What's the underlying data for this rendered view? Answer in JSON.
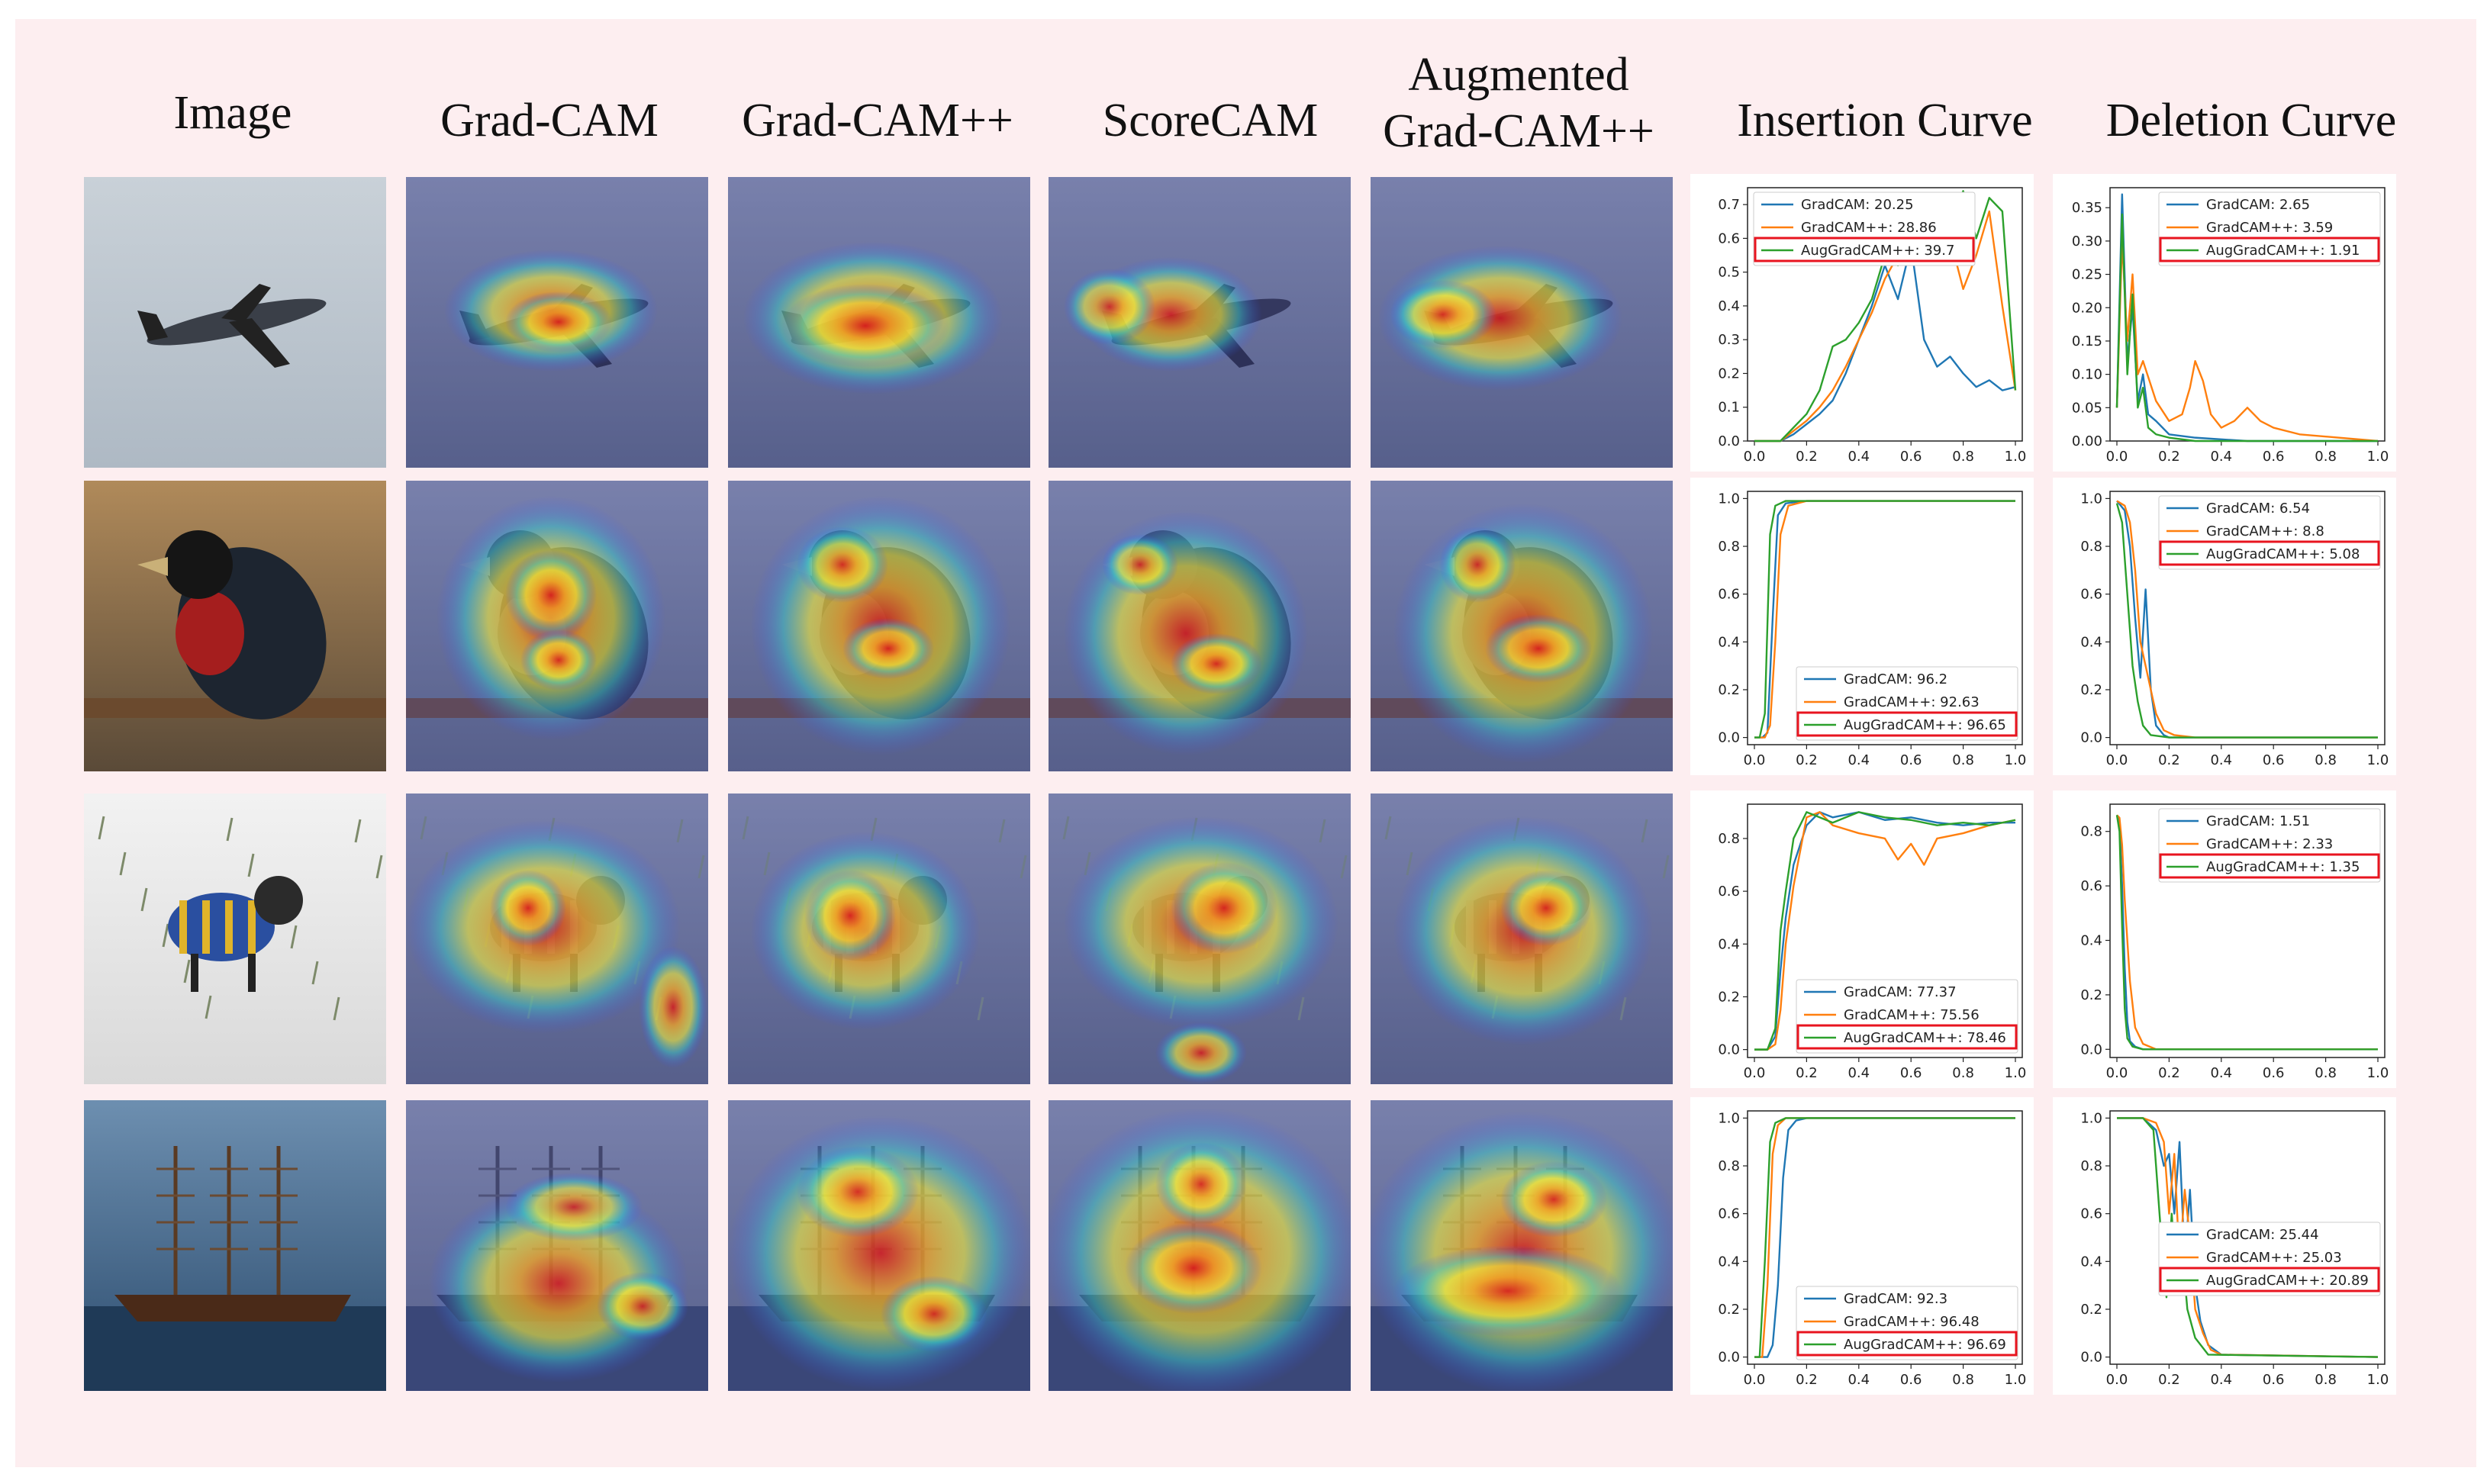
{
  "columns": [
    "Image",
    "Grad-CAM",
    "Grad-CAM++",
    "ScoreCAM",
    "Augmented Grad-CAM++",
    "Insertion Curve",
    "Deletion Curve"
  ],
  "header_aug_line1": "Augmented",
  "header_aug_line2": "Grad-CAM++",
  "rows": [
    {
      "subject": "airplane",
      "insertion": {
        "ylim": [
          0,
          0.75
        ],
        "yticks": [
          "0.0",
          "0.1",
          "0.2",
          "0.3",
          "0.4",
          "0.5",
          "0.6",
          "0.7"
        ],
        "legend_pos": "top-left",
        "labels": [
          "GradCAM: 20.25",
          "GradCAM++: 28.86",
          "AugGradCAM++: 39.7"
        ],
        "series": [
          {
            "name": "GradCAM",
            "x": [
              0,
              0.1,
              0.15,
              0.2,
              0.25,
              0.3,
              0.35,
              0.4,
              0.45,
              0.5,
              0.55,
              0.6,
              0.65,
              0.7,
              0.75,
              0.8,
              0.85,
              0.9,
              0.95,
              1.0
            ],
            "y": [
              0,
              0,
              0.02,
              0.05,
              0.08,
              0.12,
              0.2,
              0.3,
              0.4,
              0.52,
              0.42,
              0.58,
              0.3,
              0.22,
              0.25,
              0.2,
              0.16,
              0.18,
              0.15,
              0.16
            ]
          },
          {
            "name": "GradCAM++",
            "x": [
              0,
              0.1,
              0.15,
              0.2,
              0.25,
              0.3,
              0.35,
              0.4,
              0.45,
              0.5,
              0.55,
              0.6,
              0.65,
              0.7,
              0.75,
              0.8,
              0.85,
              0.9,
              0.95,
              1.0
            ],
            "y": [
              0,
              0,
              0.03,
              0.06,
              0.1,
              0.15,
              0.22,
              0.3,
              0.38,
              0.48,
              0.55,
              0.62,
              0.58,
              0.72,
              0.6,
              0.45,
              0.55,
              0.68,
              0.4,
              0.15
            ]
          },
          {
            "name": "AugGradCAM++",
            "x": [
              0,
              0.1,
              0.15,
              0.2,
              0.25,
              0.3,
              0.35,
              0.4,
              0.45,
              0.5,
              0.55,
              0.6,
              0.65,
              0.7,
              0.75,
              0.8,
              0.85,
              0.9,
              0.95,
              1.0
            ],
            "y": [
              0,
              0,
              0.04,
              0.08,
              0.15,
              0.28,
              0.3,
              0.35,
              0.42,
              0.55,
              0.52,
              0.68,
              0.62,
              0.7,
              0.66,
              0.74,
              0.6,
              0.72,
              0.68,
              0.15
            ]
          }
        ]
      },
      "deletion": {
        "ylim": [
          0,
          0.38
        ],
        "yticks": [
          "0.00",
          "0.05",
          "0.10",
          "0.15",
          "0.20",
          "0.25",
          "0.30",
          "0.35"
        ],
        "legend_pos": "top-right",
        "labels": [
          "GradCAM: 2.65",
          "GradCAM++: 3.59",
          "AugGradCAM++: 1.91"
        ],
        "series": [
          {
            "name": "GradCAM",
            "x": [
              0,
              0.02,
              0.04,
              0.06,
              0.08,
              0.1,
              0.12,
              0.15,
              0.2,
              0.3,
              0.5,
              1.0
            ],
            "y": [
              0.05,
              0.37,
              0.12,
              0.2,
              0.06,
              0.1,
              0.04,
              0.03,
              0.01,
              0.005,
              0,
              0
            ]
          },
          {
            "name": "GradCAM++",
            "x": [
              0,
              0.02,
              0.04,
              0.06,
              0.08,
              0.1,
              0.15,
              0.2,
              0.25,
              0.28,
              0.3,
              0.33,
              0.36,
              0.4,
              0.45,
              0.5,
              0.55,
              0.6,
              0.7,
              1.0
            ],
            "y": [
              0.05,
              0.3,
              0.15,
              0.25,
              0.1,
              0.12,
              0.06,
              0.03,
              0.04,
              0.08,
              0.12,
              0.09,
              0.04,
              0.02,
              0.03,
              0.05,
              0.03,
              0.02,
              0.01,
              0
            ]
          },
          {
            "name": "AugGradCAM++",
            "x": [
              0,
              0.02,
              0.04,
              0.06,
              0.08,
              0.1,
              0.12,
              0.15,
              0.2,
              0.3,
              1.0
            ],
            "y": [
              0.05,
              0.34,
              0.1,
              0.22,
              0.05,
              0.08,
              0.02,
              0.01,
              0.005,
              0,
              0
            ]
          }
        ]
      }
    },
    {
      "subject": "bird",
      "insertion": {
        "ylim": [
          -0.03,
          1.03
        ],
        "yticks": [
          "0.0",
          "0.2",
          "0.4",
          "0.6",
          "0.8",
          "1.0"
        ],
        "legend_pos": "bottom-right",
        "labels": [
          "GradCAM: 96.2",
          "GradCAM++: 92.63",
          "AugGradCAM++: 96.65"
        ],
        "series": [
          {
            "name": "GradCAM",
            "x": [
              0,
              0.03,
              0.05,
              0.07,
              0.09,
              0.12,
              0.2,
              0.4,
              0.6,
              1.0
            ],
            "y": [
              0,
              0,
              0.02,
              0.5,
              0.93,
              0.98,
              0.99,
              0.99,
              0.99,
              0.99
            ]
          },
          {
            "name": "GradCAM++",
            "x": [
              0,
              0.04,
              0.06,
              0.08,
              0.1,
              0.13,
              0.2,
              0.3,
              1.0
            ],
            "y": [
              0,
              0,
              0.05,
              0.4,
              0.85,
              0.97,
              0.99,
              0.99,
              0.99
            ]
          },
          {
            "name": "AugGradCAM++",
            "x": [
              0,
              0.02,
              0.04,
              0.06,
              0.08,
              0.12,
              0.3,
              1.0
            ],
            "y": [
              0,
              0,
              0.1,
              0.85,
              0.97,
              0.99,
              0.99,
              0.99
            ]
          }
        ]
      },
      "deletion": {
        "ylim": [
          -0.03,
          1.03
        ],
        "yticks": [
          "0.0",
          "0.2",
          "0.4",
          "0.6",
          "0.8",
          "1.0"
        ],
        "legend_pos": "top-right",
        "labels": [
          "GradCAM: 6.54",
          "GradCAM++: 8.8",
          "AugGradCAM++: 5.08"
        ],
        "series": [
          {
            "name": "GradCAM",
            "x": [
              0,
              0.03,
              0.05,
              0.07,
              0.09,
              0.11,
              0.13,
              0.15,
              0.18,
              0.2,
              0.3,
              1.0
            ],
            "y": [
              0.99,
              0.95,
              0.8,
              0.5,
              0.25,
              0.62,
              0.2,
              0.05,
              0.01,
              0,
              0,
              0
            ]
          },
          {
            "name": "GradCAM++",
            "x": [
              0,
              0.03,
              0.05,
              0.07,
              0.09,
              0.11,
              0.13,
              0.15,
              0.18,
              0.22,
              0.3,
              1.0
            ],
            "y": [
              0.99,
              0.97,
              0.9,
              0.7,
              0.4,
              0.3,
              0.2,
              0.1,
              0.03,
              0.01,
              0,
              0
            ]
          },
          {
            "name": "AugGradCAM++",
            "x": [
              0,
              0.02,
              0.04,
              0.06,
              0.08,
              0.1,
              0.13,
              0.2,
              1.0
            ],
            "y": [
              0.98,
              0.9,
              0.6,
              0.3,
              0.15,
              0.05,
              0.01,
              0,
              0
            ]
          }
        ]
      }
    },
    {
      "subject": "dog",
      "insertion": {
        "ylim": [
          -0.03,
          0.93
        ],
        "yticks": [
          "0.0",
          "0.2",
          "0.4",
          "0.6",
          "0.8"
        ],
        "legend_pos": "bottom-right",
        "labels": [
          "GradCAM: 77.37",
          "GradCAM++: 75.56",
          "AugGradCAM++: 78.46"
        ],
        "series": [
          {
            "name": "GradCAM",
            "x": [
              0,
              0.05,
              0.08,
              0.1,
              0.12,
              0.15,
              0.2,
              0.25,
              0.3,
              0.4,
              0.5,
              0.6,
              0.7,
              0.8,
              0.9,
              1.0
            ],
            "y": [
              0,
              0,
              0.05,
              0.3,
              0.5,
              0.7,
              0.85,
              0.9,
              0.88,
              0.9,
              0.87,
              0.88,
              0.86,
              0.85,
              0.86,
              0.86
            ]
          },
          {
            "name": "GradCAM++",
            "x": [
              0,
              0.05,
              0.08,
              0.1,
              0.12,
              0.15,
              0.2,
              0.25,
              0.3,
              0.4,
              0.5,
              0.55,
              0.6,
              0.65,
              0.7,
              0.8,
              0.9,
              1.0
            ],
            "y": [
              0,
              0,
              0.02,
              0.15,
              0.4,
              0.62,
              0.88,
              0.9,
              0.85,
              0.82,
              0.8,
              0.72,
              0.78,
              0.7,
              0.8,
              0.82,
              0.85,
              0.87
            ]
          },
          {
            "name": "AugGradCAM++",
            "x": [
              0,
              0.05,
              0.08,
              0.1,
              0.12,
              0.15,
              0.2,
              0.25,
              0.3,
              0.4,
              0.5,
              0.6,
              0.7,
              0.8,
              0.9,
              1.0
            ],
            "y": [
              0,
              0,
              0.08,
              0.45,
              0.6,
              0.8,
              0.9,
              0.88,
              0.86,
              0.9,
              0.88,
              0.87,
              0.85,
              0.86,
              0.85,
              0.87
            ]
          }
        ]
      },
      "deletion": {
        "ylim": [
          -0.03,
          0.9
        ],
        "yticks": [
          "0.0",
          "0.2",
          "0.4",
          "0.6",
          "0.8"
        ],
        "legend_pos": "top-right",
        "labels": [
          "GradCAM: 1.51",
          "GradCAM++: 2.33",
          "AugGradCAM++: 1.35"
        ],
        "series": [
          {
            "name": "GradCAM",
            "x": [
              0,
              0.01,
              0.02,
              0.03,
              0.04,
              0.05,
              0.07,
              0.1,
              1.0
            ],
            "y": [
              0.86,
              0.84,
              0.6,
              0.3,
              0.1,
              0.03,
              0.01,
              0,
              0
            ]
          },
          {
            "name": "GradCAM++",
            "x": [
              0,
              0.01,
              0.02,
              0.03,
              0.05,
              0.07,
              0.1,
              0.15,
              1.0
            ],
            "y": [
              0.86,
              0.85,
              0.75,
              0.55,
              0.25,
              0.08,
              0.02,
              0,
              0
            ]
          },
          {
            "name": "AugGradCAM++",
            "x": [
              0,
              0.01,
              0.02,
              0.03,
              0.04,
              0.06,
              0.1,
              1.0
            ],
            "y": [
              0.86,
              0.8,
              0.45,
              0.15,
              0.04,
              0.01,
              0,
              0
            ]
          }
        ]
      }
    },
    {
      "subject": "ship",
      "insertion": {
        "ylim": [
          -0.03,
          1.03
        ],
        "yticks": [
          "0.0",
          "0.2",
          "0.4",
          "0.6",
          "0.8",
          "1.0"
        ],
        "legend_pos": "bottom-right",
        "labels": [
          "GradCAM: 92.3",
          "GradCAM++: 96.48",
          "AugGradCAM++: 96.69"
        ],
        "series": [
          {
            "name": "GradCAM",
            "x": [
              0,
              0.05,
              0.07,
              0.09,
              0.11,
              0.13,
              0.16,
              0.2,
              1.0
            ],
            "y": [
              0,
              0,
              0.05,
              0.3,
              0.75,
              0.95,
              0.99,
              1.0,
              1.0
            ]
          },
          {
            "name": "GradCAM++",
            "x": [
              0,
              0.03,
              0.05,
              0.07,
              0.09,
              0.12,
              0.2,
              1.0
            ],
            "y": [
              0,
              0,
              0.3,
              0.85,
              0.97,
              1.0,
              1.0,
              1.0
            ]
          },
          {
            "name": "AugGradCAM++",
            "x": [
              0,
              0.02,
              0.04,
              0.06,
              0.08,
              0.12,
              0.2,
              1.0
            ],
            "y": [
              0,
              0,
              0.4,
              0.9,
              0.98,
              1.0,
              1.0,
              1.0
            ]
          }
        ]
      },
      "deletion": {
        "ylim": [
          -0.03,
          1.03
        ],
        "yticks": [
          "0.0",
          "0.2",
          "0.4",
          "0.6",
          "0.8",
          "1.0"
        ],
        "legend_pos": "center-right",
        "labels": [
          "GradCAM: 25.44",
          "GradCAM++: 25.03",
          "AugGradCAM++: 20.89"
        ],
        "series": [
          {
            "name": "GradCAM",
            "x": [
              0,
              0.1,
              0.15,
              0.18,
              0.2,
              0.22,
              0.24,
              0.26,
              0.28,
              0.3,
              0.32,
              0.35,
              0.4,
              1.0
            ],
            "y": [
              1.0,
              1.0,
              0.95,
              0.8,
              0.85,
              0.6,
              0.9,
              0.4,
              0.7,
              0.3,
              0.15,
              0.05,
              0.01,
              0
            ]
          },
          {
            "name": "GradCAM++",
            "x": [
              0,
              0.1,
              0.15,
              0.18,
              0.2,
              0.22,
              0.24,
              0.26,
              0.28,
              0.3,
              0.33,
              0.36,
              0.4,
              1.0
            ],
            "y": [
              1.0,
              1.0,
              0.98,
              0.9,
              0.6,
              0.85,
              0.4,
              0.7,
              0.5,
              0.2,
              0.1,
              0.03,
              0.01,
              0
            ]
          },
          {
            "name": "AugGradCAM++",
            "x": [
              0,
              0.1,
              0.14,
              0.17,
              0.19,
              0.21,
              0.23,
              0.25,
              0.27,
              0.3,
              0.35,
              1.0
            ],
            "y": [
              1.0,
              1.0,
              0.95,
              0.5,
              0.25,
              0.6,
              0.3,
              0.45,
              0.2,
              0.08,
              0.01,
              0
            ]
          }
        ]
      }
    }
  ],
  "xticks": [
    "0.0",
    "0.2",
    "0.4",
    "0.6",
    "0.8",
    "1.0"
  ],
  "colors": {
    "GradCAM": "#1f77b4",
    "GradCAM++": "#ff7f0e",
    "AugGradCAM++": "#2ca02c",
    "highlight": "#e8141f",
    "panel_bg": "#fdeef0"
  }
}
